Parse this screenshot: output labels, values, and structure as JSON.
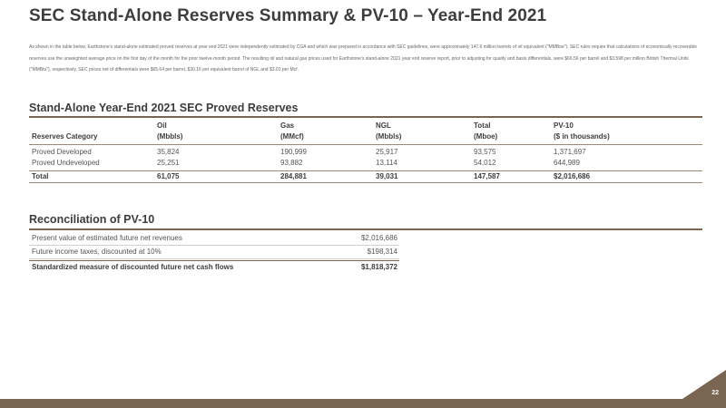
{
  "page": {
    "title": "SEC Stand-Alone Reserves Summary & PV-10 – Year-End 2021",
    "intro": "As shown in the table below, Earthstone's stand-alone estimated proved reserves at year end 2021 were independently estimated by CGA and which was prepared in accordance with SEC guidelines, were approximately 147.6 million barrels of oil equivalent (\"MMBoe\"). SEC rules require that calculations of economically recoverable reserves use the unweighted average price on the first day of the month for the prior twelve-month period. The resulting oil and natural gas prices used for Earthstone's stand-alone 2021 year end reserve report, prior to adjusting for quality and basis differentials, were $66.56 per barrel and $3.598 per million British Thermal Units (\"MMBtu\"), respectively. SEC prices net of differentials were $65.64 per barrel, $30.16 per equivalent barrel of NGL and $3.01 per Mcf.",
    "page_number": "22"
  },
  "reserves": {
    "section_title": "Stand-Alone Year-End 2021 SEC Proved Reserves",
    "header_top": [
      "",
      "Oil",
      "Gas",
      "NGL",
      "Total",
      "PV-10"
    ],
    "header_bottom": [
      "Reserves Category",
      "(Mbbls)",
      "(MMcf)",
      "(Mbbls)",
      "(Mboe)",
      "($ in thousands)"
    ],
    "rows": [
      [
        "Proved Developed",
        "35,824",
        "190,999",
        "25,917",
        "93,575",
        "1,371,697"
      ],
      [
        "Proved Undeveloped",
        "25,251",
        "93,882",
        "13,114",
        "54,012",
        "644,989"
      ]
    ],
    "total": [
      "Total",
      "61,075",
      "284,881",
      "39,031",
      "147,587",
      "$2,016,686"
    ]
  },
  "reconciliation": {
    "section_title": "Reconciliation of PV-10",
    "rows": [
      {
        "label": "Present value of estimated future net revenues",
        "value": "$2,016,686"
      },
      {
        "label": "Future income taxes, discounted at 10%",
        "value": "$198,314"
      }
    ],
    "total": {
      "label": "Standardized measure of discounted future net cash flows",
      "value": "$1,818,372"
    }
  },
  "colors": {
    "accent": "#7a6452",
    "title": "#3d3d3d"
  }
}
